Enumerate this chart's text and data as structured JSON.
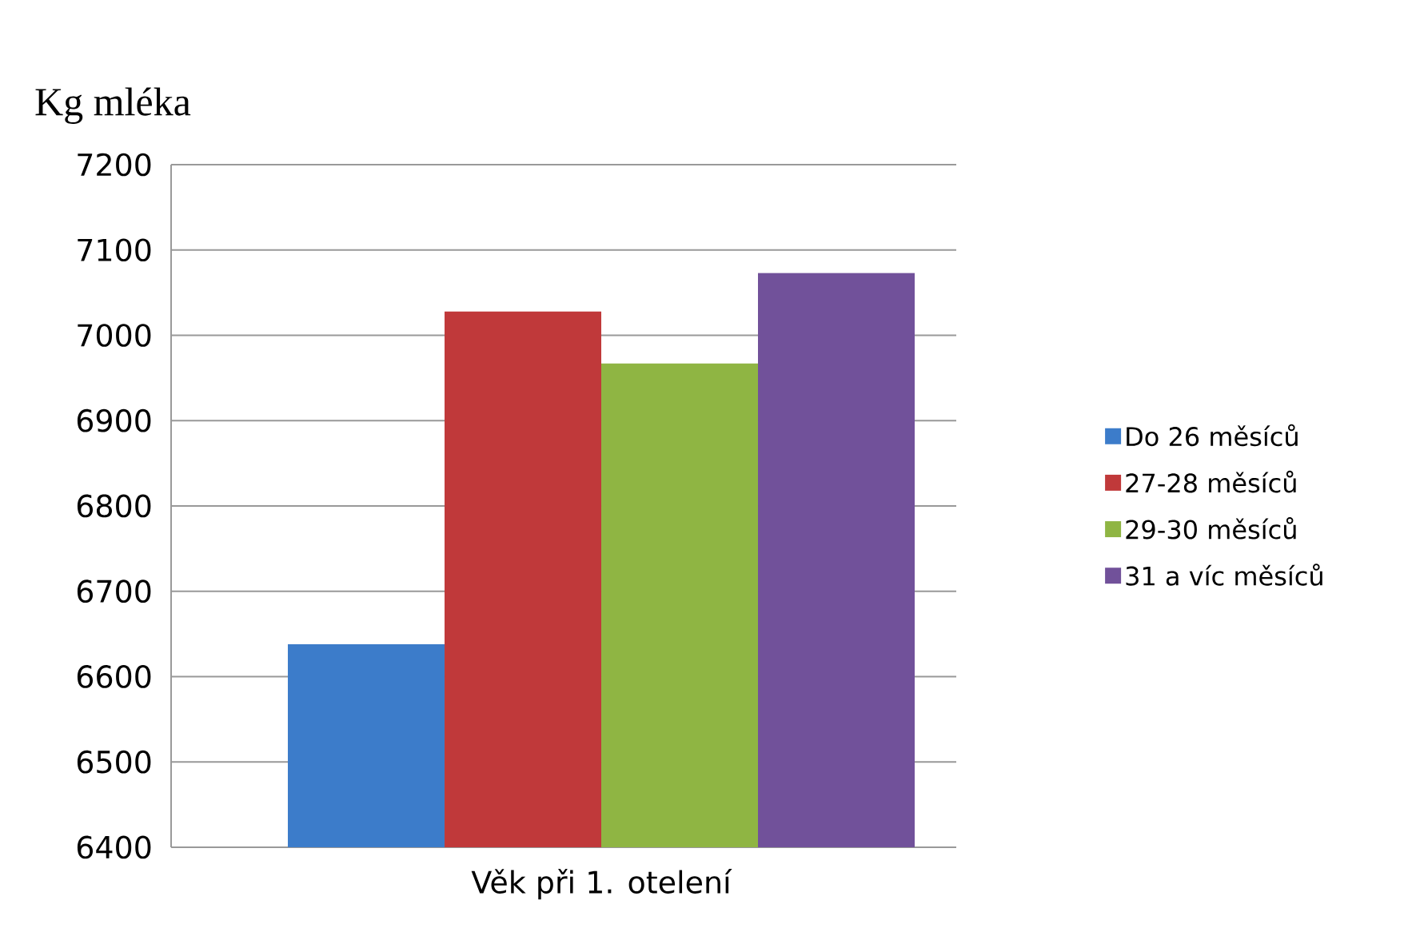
{
  "chart_data": {
    "type": "bar",
    "ylabel": "Kg mléka",
    "categories": [
      "Věk při 1. otelení"
    ],
    "series": [
      {
        "name": "Do 26 měsíců",
        "color": "#3c7cca",
        "values": [
          6638
        ]
      },
      {
        "name": "27-28 měsíců",
        "color": "#c0393a",
        "values": [
          7028
        ]
      },
      {
        "name": "29-30 měsíců",
        "color": "#8fb543",
        "values": [
          6967
        ]
      },
      {
        "name": "31 a víc měsíců",
        "color": "#71519a",
        "values": [
          7073
        ]
      }
    ],
    "ylim": [
      6400,
      7200
    ],
    "yticks": [
      6400,
      6500,
      6600,
      6700,
      6800,
      6900,
      7000,
      7100,
      7200
    ],
    "grid": "y",
    "legend": "right"
  }
}
